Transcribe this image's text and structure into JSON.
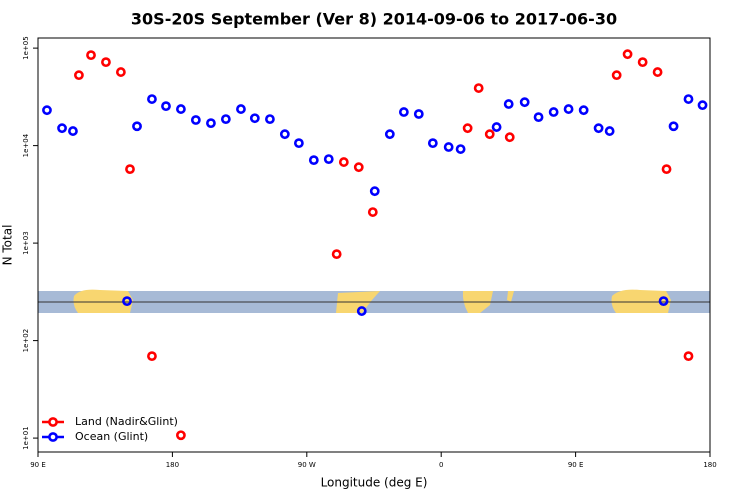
{
  "chart_data": {
    "type": "scatter",
    "title": "30S-20S September (Ver 8)   2014-09-06 to 2017-06-30",
    "x_label": "Longitude (deg E)",
    "y_label": "N Total",
    "log_y": true,
    "legend": "bottom-left",
    "xlim": [
      90,
      540
    ],
    "xticks": [
      {
        "value": 90,
        "label": "90 E"
      },
      {
        "value": 180,
        "label": "180"
      },
      {
        "value": 270,
        "label": "90 W"
      },
      {
        "value": 360,
        "label": "0"
      },
      {
        "value": 450,
        "label": "90 E"
      },
      {
        "value": 540,
        "label": "180"
      }
    ],
    "ylim": [
      7.2,
      127000
    ],
    "yticks": [
      {
        "value": 10,
        "label": "1e+01"
      },
      {
        "value": 100,
        "label": "1e+02"
      },
      {
        "value": 1000,
        "label": "1e+03"
      },
      {
        "value": 10000,
        "label": "1e+04"
      },
      {
        "value": 100000,
        "label": "1e+05"
      }
    ],
    "series": [
      {
        "name": "Land (Nadir&Glint)",
        "color": "#ff0000",
        "x": [
          117.4,
          125.5,
          135.5,
          145.5,
          151.6,
          166.3,
          185.7,
          290,
          294.8,
          304.8,
          314.2,
          377.7,
          385.1,
          392.5,
          405.9,
          477.5,
          484.8,
          494.9,
          504.9,
          510.9,
          525.6
        ],
        "values": [
          52800,
          84700,
          71800,
          56800,
          5740,
          69.3,
          10.7,
          771,
          6780,
          6010,
          2080,
          15100,
          38900,
          13100,
          12200,
          52800,
          86700,
          71800,
          56800,
          5740,
          69.3
        ]
      },
      {
        "name": "Ocean (Glint)",
        "color": "#0000ff",
        "x": [
          96,
          106.1,
          113.4,
          149.6,
          156.3,
          166.3,
          175.7,
          185.7,
          195.7,
          205.8,
          215.8,
          225.9,
          235.2,
          245.3,
          255.3,
          264.7,
          274.7,
          284.7,
          306.8,
          315.5,
          325.6,
          335,
          345,
          354.4,
          365,
          373,
          397.1,
          405.2,
          415.9,
          425.2,
          435.3,
          445.3,
          455.4,
          465.4,
          472.8,
          508.9,
          515.6,
          525.6,
          535
        ],
        "values": [
          23100,
          15100,
          14100,
          254,
          15800,
          30000,
          25400,
          23700,
          18300,
          17000,
          18700,
          23700,
          19100,
          18700,
          13100,
          10600,
          7100,
          7270,
          201,
          3410,
          13100,
          22100,
          21100,
          10600,
          9670,
          9210,
          15500,
          26700,
          27900,
          19600,
          22100,
          23700,
          23100,
          15100,
          14100,
          254,
          15800,
          30000,
          26000
        ]
      }
    ]
  }
}
